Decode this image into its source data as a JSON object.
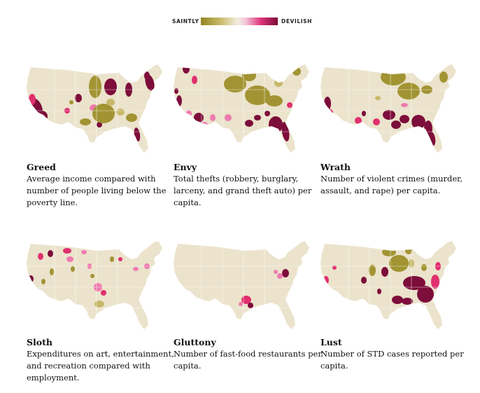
{
  "legend": {
    "left_label": "SAINTLY",
    "right_label": "DEVILISH",
    "scale_colors": [
      "#958522",
      "#c8b968",
      "#f2ede0",
      "#f2c6d8",
      "#e0347c",
      "#7a0a35"
    ]
  },
  "colors": {
    "land": "#ebe3cc",
    "border": "#ffffff",
    "saintly": "#a29433",
    "saintly_light": "#c7b86a",
    "devilish_light": "#f07ab0",
    "devilish_mid": "#e0306f",
    "devilish": "#7d0d3b"
  },
  "panels": [
    {
      "name": "Greed",
      "description": "Average income compared with number of people living below the poverty line."
    },
    {
      "name": "Envy",
      "description": "Total thefts (robbery, burglary, larceny, and grand theft auto) per capita."
    },
    {
      "name": "Wrath",
      "description": "Number of violent crimes (murder, assault, and rape) per capita."
    },
    {
      "name": "Sloth",
      "description": "Expenditures on art, entertainment, and recreation compared with employment."
    },
    {
      "name": "Gluttony",
      "description": "Number of fast-food restaurants per capita."
    },
    {
      "name": "Lust",
      "description": "Number of STD cases reported per capita."
    }
  ]
}
